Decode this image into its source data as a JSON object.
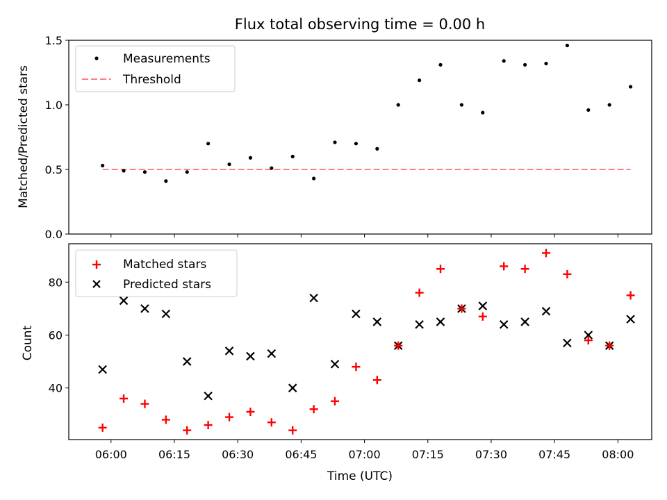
{
  "chart_data": [
    {
      "type": "scatter",
      "title": "Flux total observing time = 0.00 h",
      "ylabel": "Matched/Predicted stars",
      "ylim": [
        0,
        1.5
      ],
      "yticks": [
        "0.0",
        "0.5",
        "1.0",
        "1.5"
      ],
      "legend_position": "upper-left",
      "series": [
        {
          "name": "Measurements",
          "marker": "dot",
          "color": "#000000",
          "x": [
            "05:58",
            "06:03",
            "06:08",
            "06:13",
            "06:18",
            "06:23",
            "06:28",
            "06:33",
            "06:38",
            "06:43",
            "06:48",
            "06:53",
            "06:58",
            "07:03",
            "07:08",
            "07:13",
            "07:18",
            "07:23",
            "07:28",
            "07:33",
            "07:38",
            "07:43",
            "07:48",
            "07:53",
            "07:58",
            "08:03"
          ],
          "values": [
            0.53,
            0.49,
            0.48,
            0.41,
            0.48,
            0.7,
            0.54,
            0.59,
            0.51,
            0.6,
            0.43,
            0.71,
            0.7,
            0.66,
            1.0,
            1.19,
            1.31,
            1.0,
            0.94,
            1.34,
            1.31,
            1.32,
            1.46,
            0.96,
            1.0,
            1.14
          ]
        },
        {
          "name": "Threshold",
          "marker": "dashed-line",
          "color": "#ff7f7f",
          "x": [
            "05:58",
            "08:03"
          ],
          "values": [
            0.5,
            0.5
          ]
        }
      ]
    },
    {
      "type": "scatter",
      "xlabel": "Time (UTC)",
      "ylabel": "Count",
      "ylim": [
        20.5,
        94.5
      ],
      "yticks": [
        "40",
        "60",
        "80"
      ],
      "xlim": [
        "05:50",
        "08:08"
      ],
      "xticks": [
        "06:00",
        "06:15",
        "06:30",
        "06:45",
        "07:00",
        "07:15",
        "07:30",
        "07:45",
        "08:00"
      ],
      "legend_position": "upper-left",
      "series": [
        {
          "name": "Matched stars",
          "marker": "plus",
          "color": "#ff0000",
          "x": [
            "05:58",
            "06:03",
            "06:08",
            "06:13",
            "06:18",
            "06:23",
            "06:28",
            "06:33",
            "06:38",
            "06:43",
            "06:48",
            "06:53",
            "06:58",
            "07:03",
            "07:08",
            "07:13",
            "07:18",
            "07:23",
            "07:28",
            "07:33",
            "07:38",
            "07:43",
            "07:48",
            "07:53",
            "07:58",
            "08:03"
          ],
          "values": [
            25,
            36,
            34,
            28,
            24,
            26,
            29,
            31,
            27,
            24,
            32,
            35,
            48,
            43,
            56,
            76,
            85,
            70,
            67,
            86,
            85,
            91,
            83,
            58,
            56,
            75
          ]
        },
        {
          "name": "Predicted stars",
          "marker": "x",
          "color": "#000000",
          "x": [
            "05:58",
            "06:03",
            "06:08",
            "06:13",
            "06:18",
            "06:23",
            "06:28",
            "06:33",
            "06:38",
            "06:43",
            "06:48",
            "06:53",
            "06:58",
            "07:03",
            "07:08",
            "07:13",
            "07:18",
            "07:23",
            "07:28",
            "07:33",
            "07:38",
            "07:43",
            "07:48",
            "07:53",
            "07:58",
            "08:03"
          ],
          "values": [
            47,
            73,
            70,
            68,
            50,
            37,
            54,
            52,
            53,
            40,
            74,
            49,
            68,
            65,
            56,
            64,
            65,
            70,
            71,
            64,
            65,
            69,
            57,
            60,
            56,
            66
          ]
        }
      ]
    }
  ]
}
